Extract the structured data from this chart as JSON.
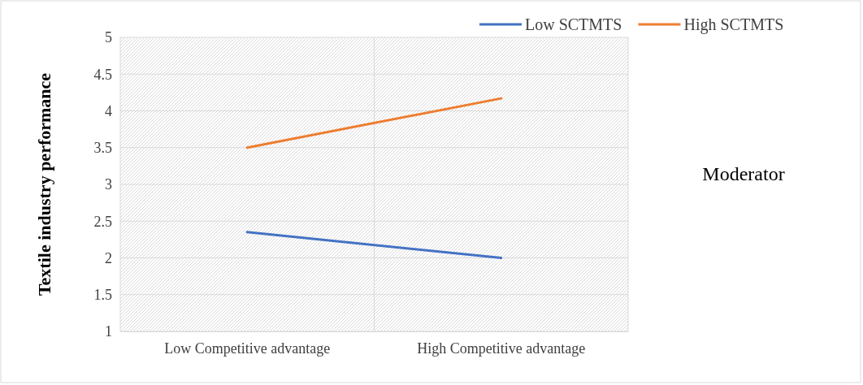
{
  "chart_data": {
    "type": "line",
    "ylabel": "Textile industry performance",
    "categories": [
      "Low Competitive advantage",
      "High Competitive advantage"
    ],
    "series": [
      {
        "name": "Low SCTMTS",
        "color": "#4472c4",
        "values": [
          2.35,
          2.0
        ]
      },
      {
        "name": "High SCTMTS",
        "color": "#ed7d31",
        "values": [
          3.5,
          4.17
        ]
      }
    ],
    "ylim": [
      1,
      5
    ],
    "yticks": [
      1,
      1.5,
      2,
      2.5,
      3,
      3.5,
      4,
      4.5,
      5
    ],
    "grid": true,
    "legend": "top right",
    "marker": "none",
    "line_style": "solid",
    "annotations": [
      "Moderator"
    ]
  }
}
